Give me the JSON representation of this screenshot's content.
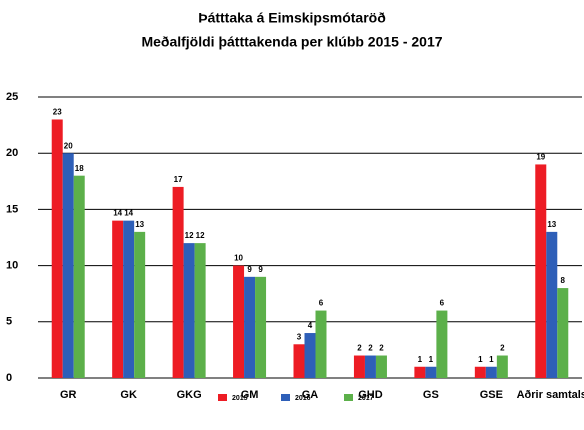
{
  "chart_data": {
    "type": "bar",
    "title": "Þátttaka á Eimskipsmótaröð",
    "subtitle": "Meðalfjöldi þátttakenda per klúbb 2015 - 2017",
    "categories": [
      "GR",
      "GK",
      "GKG",
      "GM",
      "GA",
      "GHD",
      "GS",
      "GSE",
      "Aðrir samtals"
    ],
    "series": [
      {
        "name": "2015",
        "color": "#ed1c24",
        "values": [
          23,
          14,
          17,
          10,
          3,
          2,
          1,
          1,
          19
        ]
      },
      {
        "name": "2016",
        "color": "#2e5fb8",
        "values": [
          20,
          14,
          12,
          9,
          4,
          2,
          1,
          1,
          13
        ]
      },
      {
        "name": "2017",
        "color": "#5cb04a",
        "values": [
          18,
          13,
          12,
          9,
          6,
          2,
          6,
          2,
          8
        ]
      }
    ],
    "ylim": [
      0,
      25
    ],
    "yticks": [
      0,
      5,
      10,
      15,
      20,
      25
    ],
    "grid": true,
    "legend": "bottom"
  }
}
